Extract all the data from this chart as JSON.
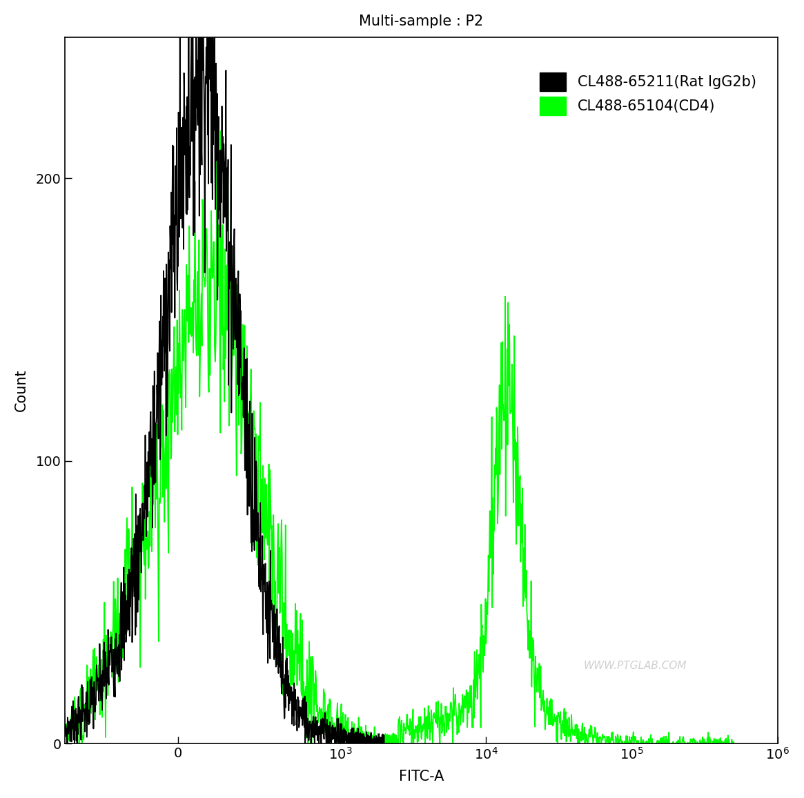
{
  "title": "Multi-sample : P2",
  "xlabel": "FITC-A",
  "ylabel": "Count",
  "watermark": "WWW.PTGLAB.COM",
  "legend_labels": [
    "CL488-65211(Rat IgG2b)",
    "CL488-65104(CD4)"
  ],
  "legend_colors": [
    "#000000",
    "#00ff00"
  ],
  "background_color": "#ffffff",
  "ylim": [
    0,
    250
  ],
  "line_width": 1.3,
  "title_fontsize": 15,
  "label_fontsize": 15,
  "tick_fontsize": 14,
  "legend_fontsize": 15
}
